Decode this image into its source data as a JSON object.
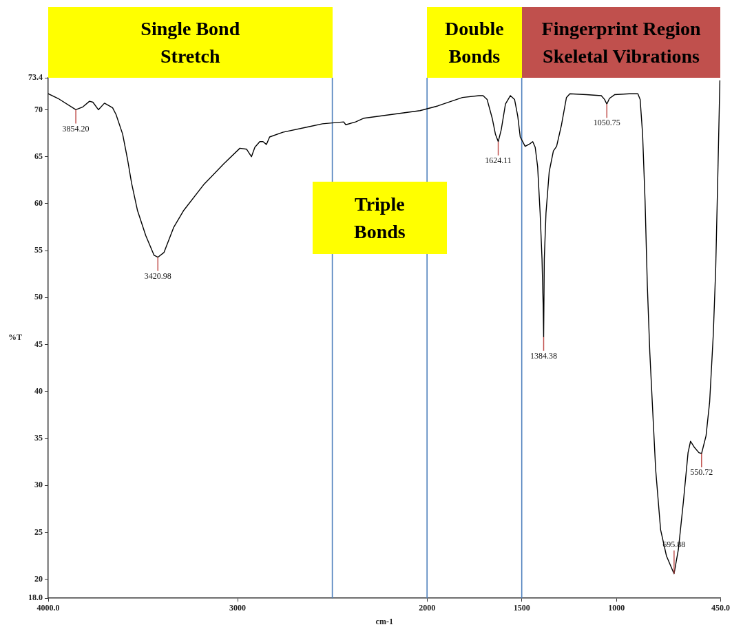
{
  "chart_data": {
    "type": "line",
    "xlabel": "cm-1",
    "ylabel": "%T",
    "color": "#000000",
    "x": [
      4000,
      3948,
      3854.2,
      3817,
      3782,
      3764,
      3735,
      3703,
      3677,
      3660,
      3642,
      3607,
      3581,
      3560,
      3529,
      3485,
      3441,
      3420.98,
      3389,
      3337,
      3284,
      3180,
      3075,
      2988,
      2953,
      2927,
      2909,
      2883,
      2866,
      2848,
      2831,
      2761,
      2622,
      2552,
      2440,
      2429,
      2377,
      2333,
      2037,
      1944,
      1813,
      1726,
      1704,
      1683,
      1656,
      1639,
      1624.11,
      1608,
      1586,
      1560,
      1538,
      1521,
      1508,
      1482,
      1455,
      1442,
      1429,
      1416,
      1403,
      1393,
      1387,
      1384.38,
      1381,
      1372,
      1355,
      1333,
      1316,
      1290,
      1264,
      1246,
      1159,
      1080,
      1063,
      1050.75,
      1037,
      1010,
      932,
      887,
      875,
      862,
      849,
      837,
      824,
      811,
      793,
      767,
      736,
      695.88,
      673,
      647,
      622,
      609,
      590,
      565,
      550.72,
      527,
      508,
      489,
      476,
      464,
      454
    ],
    "values": [
      71.7,
      71.2,
      70.0,
      70.3,
      70.9,
      70.8,
      70.0,
      70.7,
      70.4,
      70.2,
      69.5,
      67.4,
      64.7,
      62.2,
      59.3,
      56.6,
      54.5,
      54.3,
      54.8,
      57.5,
      59.3,
      62.0,
      64.2,
      65.9,
      65.8,
      65.0,
      66.0,
      66.6,
      66.6,
      66.3,
      67.1,
      67.6,
      68.2,
      68.5,
      68.7,
      68.4,
      68.7,
      69.1,
      69.9,
      70.4,
      71.3,
      71.5,
      71.5,
      71.1,
      69.1,
      67.4,
      66.6,
      67.9,
      70.6,
      71.5,
      71.1,
      69.3,
      67.1,
      66.1,
      66.4,
      66.6,
      66.0,
      63.9,
      59.0,
      54.1,
      49.2,
      45.8,
      54.1,
      59.0,
      63.4,
      65.6,
      66.1,
      68.4,
      71.3,
      71.7,
      71.6,
      71.5,
      71.1,
      70.6,
      71.2,
      71.6,
      71.7,
      71.7,
      71.1,
      67.4,
      60.3,
      51.3,
      44.2,
      38.9,
      31.7,
      25.3,
      22.5,
      20.6,
      23.2,
      28.2,
      33.5,
      34.7,
      34.1,
      33.5,
      33.4,
      35.3,
      38.9,
      46.0,
      53.1,
      63.8,
      73.1
    ],
    "xlim": [
      4000,
      450
    ],
    "xticks": [
      {
        "value": 4000,
        "label": "4000.0"
      },
      3000,
      2000,
      1500,
      1000,
      {
        "value": 450,
        "label": "450.0"
      }
    ],
    "ylim": [
      18,
      73.4
    ],
    "yticks": [
      {
        "value": 18,
        "label": "18.0"
      },
      20,
      25,
      30,
      35,
      40,
      45,
      50,
      55,
      60,
      65,
      70,
      73.4
    ],
    "ref_lines": [
      {
        "axis": "x",
        "value": 2500,
        "color": "#4f81bd"
      },
      {
        "axis": "x",
        "value": 2000,
        "color": "#4f81bd"
      },
      {
        "axis": "x",
        "value": 1500,
        "color": "#4f81bd"
      }
    ],
    "annotations": [
      "Single Bond Stretch",
      "Triple Bonds",
      "Double Bonds",
      "Fingerprint Region Skeletal Vibrations",
      {
        "text": "3854.20",
        "x": 3854.2,
        "y": 70.0
      },
      {
        "text": "3420.98",
        "x": 3420.98,
        "y": 54.3
      },
      {
        "text": "1624.11",
        "x": 1624.11,
        "y": 66.6
      },
      {
        "text": "1384.38",
        "x": 1384.38,
        "y": 45.8
      },
      {
        "text": "1050.75",
        "x": 1050.75,
        "y": 70.6
      },
      {
        "text": "695.88",
        "x": 695.88,
        "y": 20.6
      },
      {
        "text": "550.72",
        "x": 550.72,
        "y": 33.4
      }
    ]
  }
}
